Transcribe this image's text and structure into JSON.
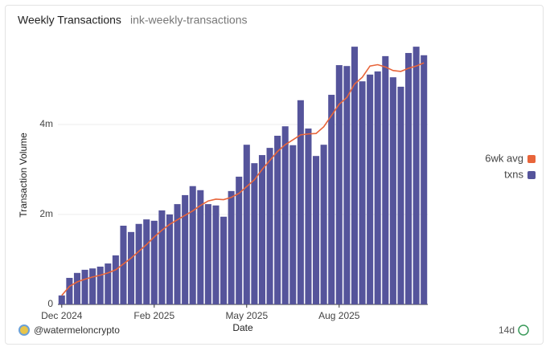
{
  "chart_data": {
    "type": "bar",
    "title": "Weekly Transactions",
    "subtitle": "ink-weekly-transactions",
    "x_label": "Date",
    "y_label": "Transaction Volume",
    "author": "@watermeloncrypto",
    "badge": "14d",
    "categories": [
      "Dec 2024",
      null,
      null,
      null,
      null,
      null,
      null,
      null,
      null,
      null,
      null,
      null,
      "Feb 2025",
      null,
      null,
      null,
      null,
      null,
      null,
      null,
      null,
      null,
      null,
      null,
      "May 2025",
      null,
      null,
      null,
      null,
      null,
      null,
      null,
      null,
      null,
      null,
      null,
      "Aug 2025",
      null,
      null,
      null,
      null,
      null,
      null,
      null,
      null,
      null,
      null,
      null
    ],
    "series": [
      {
        "name": "6wk avg",
        "type": "line",
        "color": "#e8653a",
        "values": [
          200000,
          400000,
          500000,
          560000,
          610000,
          650000,
          700000,
          770000,
          900000,
          1030000,
          1180000,
          1330000,
          1500000,
          1650000,
          1780000,
          1880000,
          1980000,
          2080000,
          2200000,
          2300000,
          2340000,
          2330000,
          2380000,
          2470000,
          2620000,
          2770000,
          3000000,
          3200000,
          3400000,
          3550000,
          3660000,
          3770000,
          3790000,
          3800000,
          3950000,
          4200000,
          4450000,
          4600000,
          4900000,
          5050000,
          5300000,
          5330000,
          5280000,
          5200000,
          5180000,
          5250000,
          5300000,
          5370000
        ]
      },
      {
        "name": "txns",
        "type": "bar",
        "color": "#55549b",
        "values": [
          200000,
          590000,
          700000,
          770000,
          800000,
          840000,
          910000,
          1090000,
          1750000,
          1610000,
          1790000,
          1890000,
          1860000,
          2090000,
          2000000,
          2230000,
          2430000,
          2630000,
          2540000,
          2230000,
          2200000,
          1950000,
          2520000,
          2840000,
          3550000,
          3140000,
          3320000,
          3480000,
          3750000,
          3960000,
          3540000,
          4540000,
          3910000,
          3300000,
          3550000,
          4660000,
          5320000,
          5300000,
          5730000,
          4960000,
          5110000,
          5180000,
          5520000,
          5050000,
          4840000,
          5590000,
          5730000,
          5540000
        ]
      }
    ],
    "ylim": [
      0,
      6000000
    ],
    "yticks": [
      0,
      {
        "value": 2000000,
        "label": "2m"
      },
      {
        "value": 4000000,
        "label": "4m"
      }
    ],
    "grid": true
  }
}
